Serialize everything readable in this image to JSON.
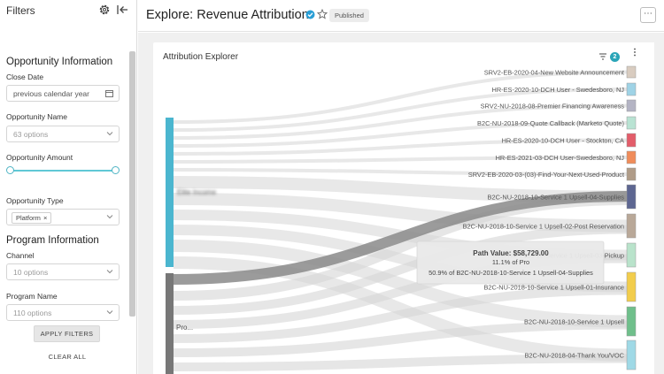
{
  "sidebar": {
    "title": "Filters",
    "icons": {
      "settings": "gear-icon",
      "collapse": "collapse-left-icon"
    },
    "sections": [
      {
        "title": "Opportunity Information"
      },
      {
        "title": "Program Information"
      }
    ],
    "close_date": {
      "label": "Close Date",
      "value": "previous calendar year"
    },
    "opportunity_name": {
      "label": "Opportunity Name",
      "placeholder": "63 options"
    },
    "opportunity_amount": {
      "label": "Opportunity Amount",
      "range_low": 0,
      "range_high": 1
    },
    "opportunity_type": {
      "label": "Opportunity Type",
      "chip": "Platform",
      "chip_remove": "×"
    },
    "channel": {
      "label": "Channel",
      "placeholder": "10 options"
    },
    "program_name": {
      "label": "Program Name",
      "placeholder": "110 options"
    },
    "apply_label": "APPLY FILTERS",
    "clear_label": "CLEAR ALL"
  },
  "header": {
    "title": "Explore: Revenue Attribution",
    "badge": "Published",
    "more": "⋯"
  },
  "card": {
    "title": "Attribution Explorer",
    "filter_count": "2",
    "kebab": "⋮"
  },
  "sankey": {
    "sources": [
      {
        "label": "Elite Income",
        "color": "#4bb6cf"
      },
      {
        "label": "Pro...",
        "color": "#777777"
      }
    ],
    "targets": [
      {
        "label": "SRV2-EB-2020-04-New Website Announcement",
        "color": "#d9ccc0"
      },
      {
        "label": "HR-ES-2020-10-DCH User - Swedesboro, NJ",
        "color": "#9fd3e6"
      },
      {
        "label": "SRV2-NU-2018-08-Premier Financing Awareness",
        "color": "#b4b4c4"
      },
      {
        "label": "B2C-NU-2018-09-Quote Callback (Marketo Quote)",
        "color": "#b9e3d3"
      },
      {
        "label": "HR-ES-2020-10-DCH User - Stockton, CA",
        "color": "#e35d6a"
      },
      {
        "label": "HR-ES-2021-03-DCH User-Swedesboro, NJ",
        "color": "#f08c5a"
      },
      {
        "label": "SRV2-EB-2020-03-(03)-Find-Your-Next-Used-Product",
        "color": "#b09c88"
      },
      {
        "label": "B2C-NU-2018-10-Service 1 Upsell-04-Supplies",
        "color": "#5d6691"
      },
      {
        "label": "B2C-NU-2018-10-Service 1 Upsell-02-Post Reservation",
        "color": "#b9a898"
      },
      {
        "label": "B2C-NU-2018-10-Service 1 Upsell-03-Pickup",
        "color": "#b9e3cb"
      },
      {
        "label": "B2C-NU-2018-10-Service 1 Upsell-01-Insurance",
        "color": "#f2cd4c"
      },
      {
        "label": "B2C-NU-2018-10-Service 1 Upsell",
        "color": "#6fbf8b"
      },
      {
        "label": "B2C-NU-2018-04-Thank You/VOC",
        "color": "#9fd9e6"
      }
    ],
    "tooltip": {
      "line1": "Path Value: $58,729.00",
      "line2": "11.1% of Pro",
      "line3": "50.9% of B2C-NU-2018-10-Service 1 Upsell-04-Supplies"
    }
  }
}
